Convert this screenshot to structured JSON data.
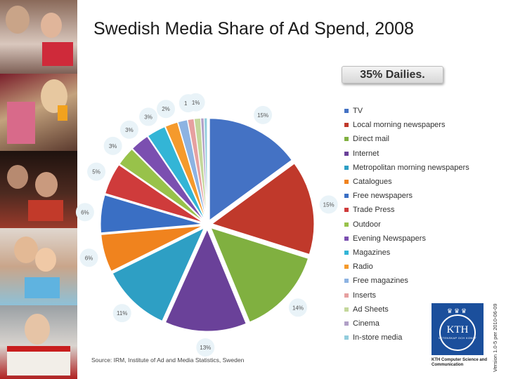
{
  "title": "Swedish Media Share of Ad Spend, 2008",
  "callout": "35% Dailies.",
  "source": "Source: IRM, Institute of Ad and Media Statistics, Sweden",
  "version": "Version 1.0-5 per 2010-06-09",
  "logo": {
    "text": "KTH",
    "subtext": "VETENSKAP OCH KONST",
    "caption": "KTH Computer Science and Communication"
  },
  "chart_data": {
    "type": "pie",
    "title": "Swedish Media Share of Ad Spend, 2008",
    "slices": [
      {
        "name": "TV",
        "value": 15,
        "label": "15%",
        "color": "#4472c4"
      },
      {
        "name": "Local morning newspapers",
        "value": 15,
        "label": "15%",
        "color": "#c0392b"
      },
      {
        "name": "Direct mail",
        "value": 14,
        "label": "14%",
        "color": "#80b040"
      },
      {
        "name": "Internet",
        "value": 13,
        "label": "13%",
        "color": "#6a4199"
      },
      {
        "name": "Metropolitan morning newspapers",
        "value": 11,
        "label": "11%",
        "color": "#2e9fc4"
      },
      {
        "name": "Catalogues",
        "value": 6,
        "label": "6%",
        "color": "#f0831e"
      },
      {
        "name": "Free newspapers",
        "value": 6,
        "label": "6%",
        "color": "#3a6fc4"
      },
      {
        "name": "Trade Press",
        "value": 5,
        "label": "5%",
        "color": "#cf3b3b"
      },
      {
        "name": "Outdoor",
        "value": 3,
        "label": "3%",
        "color": "#98c24a"
      },
      {
        "name": "Evening Newspapers",
        "value": 3,
        "label": "3%",
        "color": "#7b4fb0"
      },
      {
        "name": "Magazines",
        "value": 3,
        "label": "3%",
        "color": "#33b5d6"
      },
      {
        "name": "Radio",
        "value": 2,
        "label": "2%",
        "color": "#f59a2c"
      },
      {
        "name": "Free magazines",
        "value": 1.5,
        "label": "",
        "color": "#8db3e2"
      },
      {
        "name": "Inserts",
        "value": 1,
        "label": "1%",
        "color": "#e6a0a0"
      },
      {
        "name": "Ad Sheets",
        "value": 1,
        "label": "1%",
        "color": "#c4d79b"
      },
      {
        "name": "Cinema",
        "value": 0.5,
        "label": "",
        "color": "#b1a0c7"
      },
      {
        "name": "In-store media",
        "value": 0.5,
        "label": "",
        "color": "#93cddd"
      }
    ]
  }
}
